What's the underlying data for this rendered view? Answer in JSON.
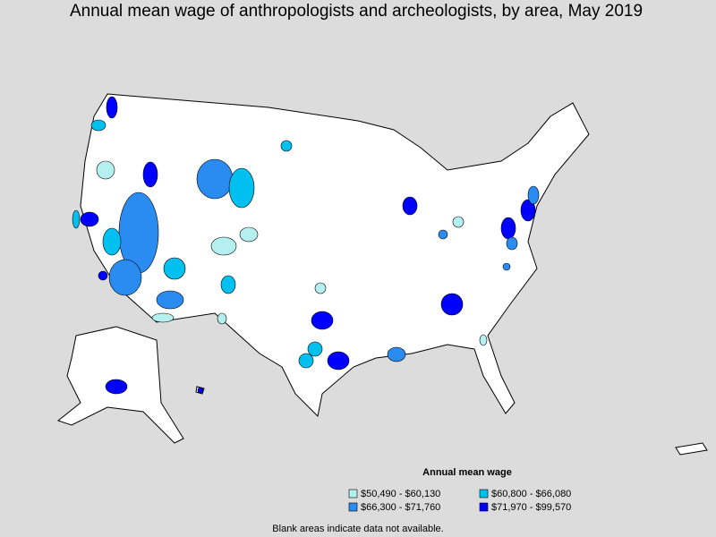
{
  "title": "Annual mean wage of anthropologists and archeologists, by area, May 2019",
  "legend": {
    "title": "Annual mean wage",
    "items": [
      {
        "label": "$50,490 - $60,130",
        "color": "#b4f0f0"
      },
      {
        "label": "$60,800 - $66,080",
        "color": "#00c0f0"
      },
      {
        "label": "$66,300 - $71,760",
        "color": "#2a8cf0"
      },
      {
        "label": "$71,970 - $99,570",
        "color": "#0000ff"
      }
    ]
  },
  "footnote": "Blank areas indicate data not available."
}
